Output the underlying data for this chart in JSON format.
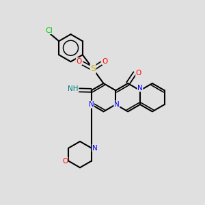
{
  "background_color": "#e0e0e0",
  "bond_color": "#000000",
  "atom_colors": {
    "N": "#0000ff",
    "O": "#ff0000",
    "S": "#ccaa00",
    "Cl": "#00cc00",
    "NH": "#008080",
    "C": "#000000"
  },
  "figsize": [
    3.0,
    3.0
  ],
  "dpi": 100
}
